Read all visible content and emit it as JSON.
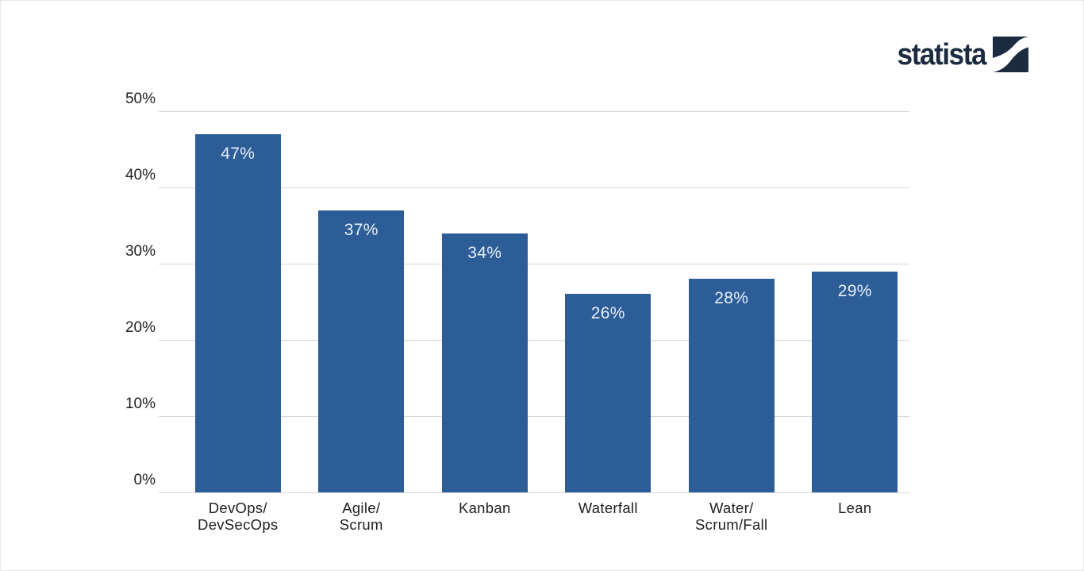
{
  "brand": {
    "wordmark": "statista",
    "color": "#1c2b40"
  },
  "chart_data": {
    "type": "bar",
    "title": "",
    "xlabel": "",
    "ylabel": "",
    "categories": [
      "DevOps/DevSecOps",
      "Agile/Scrum",
      "Kanban",
      "Waterfall",
      "Water/Scrum/Fall",
      "Lean"
    ],
    "category_lines": [
      [
        "DevOps/",
        "DevSecOps"
      ],
      [
        "Agile/",
        "Scrum"
      ],
      [
        "Kanban"
      ],
      [
        "Waterfall"
      ],
      [
        "Water/",
        "Scrum/Fall"
      ],
      [
        "Lean"
      ]
    ],
    "values": [
      47,
      37,
      34,
      26,
      28,
      29
    ],
    "value_labels": [
      "47%",
      "37%",
      "34%",
      "26%",
      "28%",
      "29%"
    ],
    "ylim": [
      0,
      50
    ],
    "y_ticks": [
      {
        "value": 0,
        "label": "0%"
      },
      {
        "value": 10,
        "label": "10%"
      },
      {
        "value": 20,
        "label": "20%"
      },
      {
        "value": 30,
        "label": "30%"
      },
      {
        "value": 40,
        "label": "40%"
      },
      {
        "value": 50,
        "label": "50%"
      }
    ],
    "grid": true,
    "legend": null,
    "bar_color": "#2d5d97",
    "value_label_color": "#e6eff9",
    "axis_text_color": "#1f1f1f",
    "gridline_color": "#d6d6d6"
  }
}
